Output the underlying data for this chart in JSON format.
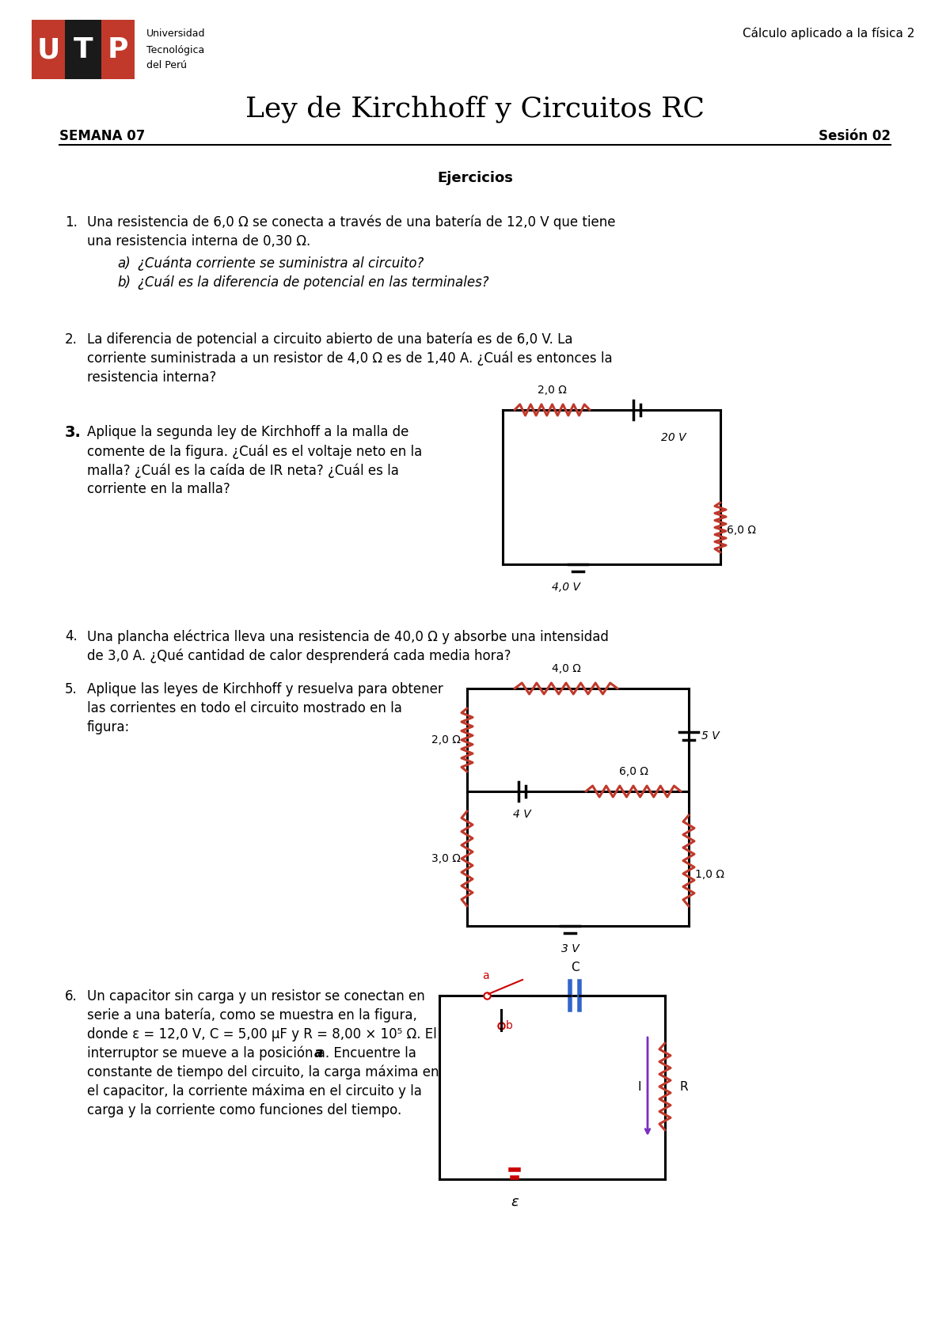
{
  "title": "Ley de Kirchhoff y Circuitos RC",
  "semana": "SEMANA 07",
  "sesion": "Sesión 02",
  "header_right": "Cálculo aplicado a la física 2",
  "section_title": "Ejercicios",
  "background_color": "#ffffff",
  "text_color": "#000000",
  "accent_color": "#c0392b",
  "utp_red": "#c0392b",
  "utp_black": "#1a1a1a",
  "resistor_color": "#c0392b",
  "battery_color": "#cc0000",
  "arrow_color": "#7b2fbe",
  "switch_color": "#cc0000",
  "cap_color": "#3366cc"
}
